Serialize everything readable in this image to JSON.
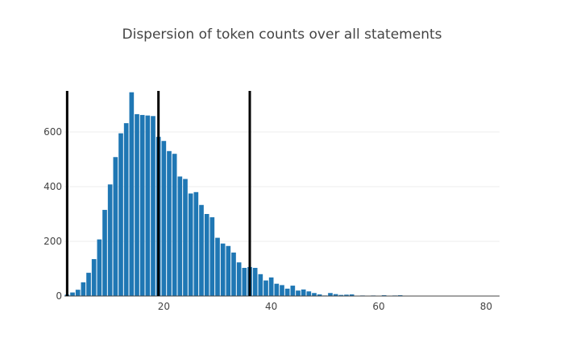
{
  "chart_data": {
    "type": "bar",
    "title": "Dispersion of token counts over all statements",
    "xlabel": "",
    "ylabel": "",
    "x_ticks": [
      20,
      40,
      60,
      80
    ],
    "y_ticks": [
      0,
      200,
      400,
      600
    ],
    "xlim": [
      1.5,
      82.5
    ],
    "ylim": [
      0,
      750
    ],
    "x": [
      2,
      3,
      4,
      5,
      6,
      7,
      8,
      9,
      10,
      11,
      12,
      13,
      14,
      15,
      16,
      17,
      18,
      19,
      20,
      21,
      22,
      23,
      24,
      25,
      26,
      27,
      28,
      29,
      30,
      31,
      32,
      33,
      34,
      35,
      36,
      37,
      38,
      39,
      40,
      41,
      42,
      43,
      44,
      45,
      46,
      47,
      48,
      49,
      50,
      51,
      52,
      53,
      54,
      55,
      56,
      57,
      58,
      59,
      60,
      61,
      62,
      63,
      64,
      65
    ],
    "values": [
      5,
      13,
      23,
      50,
      85,
      135,
      207,
      315,
      408,
      508,
      595,
      632,
      745,
      665,
      662,
      660,
      658,
      582,
      567,
      530,
      520,
      437,
      428,
      375,
      380,
      333,
      300,
      288,
      213,
      192,
      183,
      159,
      123,
      103,
      106,
      103,
      80,
      57,
      68,
      45,
      40,
      27,
      38,
      20,
      24,
      17,
      11,
      6,
      2,
      11,
      7,
      4,
      5,
      6,
      1,
      2,
      1,
      2,
      1,
      3,
      0,
      2,
      3,
      1
    ],
    "vertical_lines": [
      2,
      19,
      36
    ],
    "bar_color": "#1f77b4",
    "line_color": "#000000",
    "grid": true
  }
}
